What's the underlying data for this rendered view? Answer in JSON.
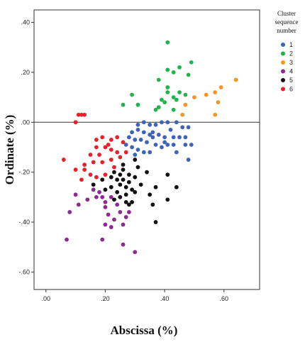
{
  "chart_data": {
    "type": "scatter",
    "xlabel": "Abscissa (%)",
    "ylabel": "Ordinate (%)",
    "xlim": [
      -0.04,
      0.72
    ],
    "ylim": [
      -0.67,
      0.45
    ],
    "x_ticks": [
      0.0,
      0.2,
      0.4,
      0.6
    ],
    "x_tick_labels": [
      ".00",
      ".20",
      ".40",
      ".60"
    ],
    "y_ticks": [
      0.4,
      0.2,
      0.0,
      -0.2,
      -0.4,
      -0.6
    ],
    "y_tick_labels": [
      ".40",
      ".20",
      ".00",
      "-.20",
      "-.40",
      "-.60"
    ],
    "reference_line_y": 0.0,
    "grid": false,
    "legend_position": "top-right, outside plot",
    "legend_title_lines": [
      "Cluster",
      "sequence",
      "number"
    ],
    "series": [
      {
        "name": "1",
        "color": "#3f63b8",
        "points": [
          [
            0.31,
            -0.01
          ],
          [
            0.33,
            0.0
          ],
          [
            0.35,
            -0.01
          ],
          [
            0.37,
            -0.01
          ],
          [
            0.39,
            0.0
          ],
          [
            0.41,
            0.0
          ],
          [
            0.42,
            -0.03
          ],
          [
            0.44,
            0.0
          ],
          [
            0.46,
            -0.02
          ],
          [
            0.48,
            -0.02
          ],
          [
            0.31,
            -0.03
          ],
          [
            0.33,
            -0.04
          ],
          [
            0.35,
            -0.05
          ],
          [
            0.36,
            -0.04
          ],
          [
            0.38,
            -0.05
          ],
          [
            0.4,
            -0.06
          ],
          [
            0.43,
            -0.06
          ],
          [
            0.45,
            -0.06
          ],
          [
            0.47,
            -0.06
          ],
          [
            0.29,
            -0.04
          ],
          [
            0.28,
            -0.06
          ],
          [
            0.3,
            -0.07
          ],
          [
            0.32,
            -0.07
          ],
          [
            0.34,
            -0.08
          ],
          [
            0.37,
            -0.09
          ],
          [
            0.39,
            -0.1
          ],
          [
            0.41,
            -0.09
          ],
          [
            0.43,
            -0.09
          ],
          [
            0.47,
            -0.09
          ],
          [
            0.49,
            -0.09
          ],
          [
            0.27,
            -0.09
          ],
          [
            0.29,
            -0.1
          ],
          [
            0.31,
            -0.11
          ],
          [
            0.33,
            -0.12
          ],
          [
            0.35,
            -0.12
          ],
          [
            0.4,
            -0.08
          ],
          [
            0.44,
            -0.12
          ],
          [
            0.48,
            -0.15
          ],
          [
            0.3,
            -0.13
          ],
          [
            0.36,
            -0.06
          ]
        ]
      },
      {
        "name": "2",
        "color": "#22b34b",
        "points": [
          [
            0.41,
            0.32
          ],
          [
            0.49,
            0.24
          ],
          [
            0.45,
            0.22
          ],
          [
            0.41,
            0.21
          ],
          [
            0.43,
            0.2
          ],
          [
            0.48,
            0.19
          ],
          [
            0.38,
            0.17
          ],
          [
            0.41,
            0.14
          ],
          [
            0.41,
            0.12
          ],
          [
            0.45,
            0.12
          ],
          [
            0.43,
            0.1
          ],
          [
            0.39,
            0.09
          ],
          [
            0.29,
            0.11
          ],
          [
            0.26,
            0.07
          ],
          [
            0.31,
            0.07
          ],
          [
            0.38,
            0.06
          ],
          [
            0.37,
            0.05
          ],
          [
            0.43,
            0.05
          ],
          [
            0.47,
            0.11
          ],
          [
            0.44,
            0.09
          ],
          [
            0.4,
            0.08
          ]
        ]
      },
      {
        "name": "3",
        "color": "#f5961e",
        "points": [
          [
            0.64,
            0.17
          ],
          [
            0.59,
            0.14
          ],
          [
            0.54,
            0.11
          ],
          [
            0.57,
            0.12
          ],
          [
            0.5,
            0.1
          ],
          [
            0.58,
            0.08
          ],
          [
            0.47,
            0.07
          ],
          [
            0.57,
            0.03
          ],
          [
            0.46,
            0.03
          ]
        ]
      },
      {
        "name": "4",
        "color": "#8b2a8f",
        "points": [
          [
            0.07,
            -0.47
          ],
          [
            0.08,
            -0.36
          ],
          [
            0.1,
            -0.29
          ],
          [
            0.11,
            -0.33
          ],
          [
            0.14,
            -0.31
          ],
          [
            0.16,
            -0.27
          ],
          [
            0.17,
            -0.3
          ],
          [
            0.18,
            -0.28
          ],
          [
            0.19,
            -0.3
          ],
          [
            0.2,
            -0.32
          ],
          [
            0.2,
            -0.34
          ],
          [
            0.21,
            -0.37
          ],
          [
            0.2,
            -0.41
          ],
          [
            0.22,
            -0.42
          ],
          [
            0.23,
            -0.39
          ],
          [
            0.25,
            -0.36
          ],
          [
            0.27,
            -0.38
          ],
          [
            0.28,
            -0.36
          ],
          [
            0.26,
            -0.41
          ],
          [
            0.19,
            -0.47
          ],
          [
            0.26,
            -0.49
          ],
          [
            0.3,
            -0.52
          ],
          [
            0.22,
            -0.3
          ],
          [
            0.24,
            -0.33
          ]
        ]
      },
      {
        "name": "5",
        "color": "#111111",
        "points": [
          [
            0.16,
            -0.25
          ],
          [
            0.19,
            -0.23
          ],
          [
            0.2,
            -0.27
          ],
          [
            0.22,
            -0.22
          ],
          [
            0.22,
            -0.26
          ],
          [
            0.23,
            -0.2
          ],
          [
            0.24,
            -0.23
          ],
          [
            0.24,
            -0.28
          ],
          [
            0.25,
            -0.21
          ],
          [
            0.25,
            -0.25
          ],
          [
            0.26,
            -0.19
          ],
          [
            0.26,
            -0.23
          ],
          [
            0.27,
            -0.26
          ],
          [
            0.27,
            -0.29
          ],
          [
            0.28,
            -0.21
          ],
          [
            0.28,
            -0.24
          ],
          [
            0.29,
            -0.27
          ],
          [
            0.29,
            -0.32
          ],
          [
            0.3,
            -0.22
          ],
          [
            0.3,
            -0.28
          ],
          [
            0.27,
            -0.32
          ],
          [
            0.25,
            -0.3
          ],
          [
            0.28,
            -0.33
          ],
          [
            0.23,
            -0.31
          ],
          [
            0.32,
            -0.25
          ],
          [
            0.31,
            -0.18
          ],
          [
            0.35,
            -0.29
          ],
          [
            0.36,
            -0.33
          ],
          [
            0.37,
            -0.26
          ],
          [
            0.41,
            -0.21
          ],
          [
            0.44,
            -0.26
          ],
          [
            0.41,
            -0.31
          ],
          [
            0.37,
            -0.4
          ],
          [
            0.3,
            -0.15
          ],
          [
            0.26,
            -0.17
          ],
          [
            0.34,
            -0.2
          ]
        ]
      },
      {
        "name": "6",
        "color": "#e8202a",
        "points": [
          [
            0.11,
            0.03
          ],
          [
            0.12,
            0.03
          ],
          [
            0.13,
            0.03
          ],
          [
            0.1,
            0.0
          ],
          [
            0.17,
            -0.07
          ],
          [
            0.19,
            -0.06
          ],
          [
            0.22,
            -0.07
          ],
          [
            0.24,
            -0.06
          ],
          [
            0.26,
            -0.08
          ],
          [
            0.17,
            -0.1
          ],
          [
            0.2,
            -0.1
          ],
          [
            0.22,
            -0.11
          ],
          [
            0.24,
            -0.12
          ],
          [
            0.15,
            -0.13
          ],
          [
            0.18,
            -0.13
          ],
          [
            0.16,
            -0.16
          ],
          [
            0.19,
            -0.16
          ],
          [
            0.22,
            -0.15
          ],
          [
            0.13,
            -0.17
          ],
          [
            0.13,
            -0.19
          ],
          [
            0.06,
            -0.15
          ],
          [
            0.1,
            -0.19
          ],
          [
            0.15,
            -0.21
          ],
          [
            0.17,
            -0.22
          ],
          [
            0.2,
            -0.21
          ],
          [
            0.12,
            -0.23
          ],
          [
            0.25,
            -0.14
          ],
          [
            0.27,
            -0.12
          ],
          [
            0.23,
            -0.18
          ],
          [
            0.21,
            -0.09
          ]
        ]
      }
    ]
  }
}
